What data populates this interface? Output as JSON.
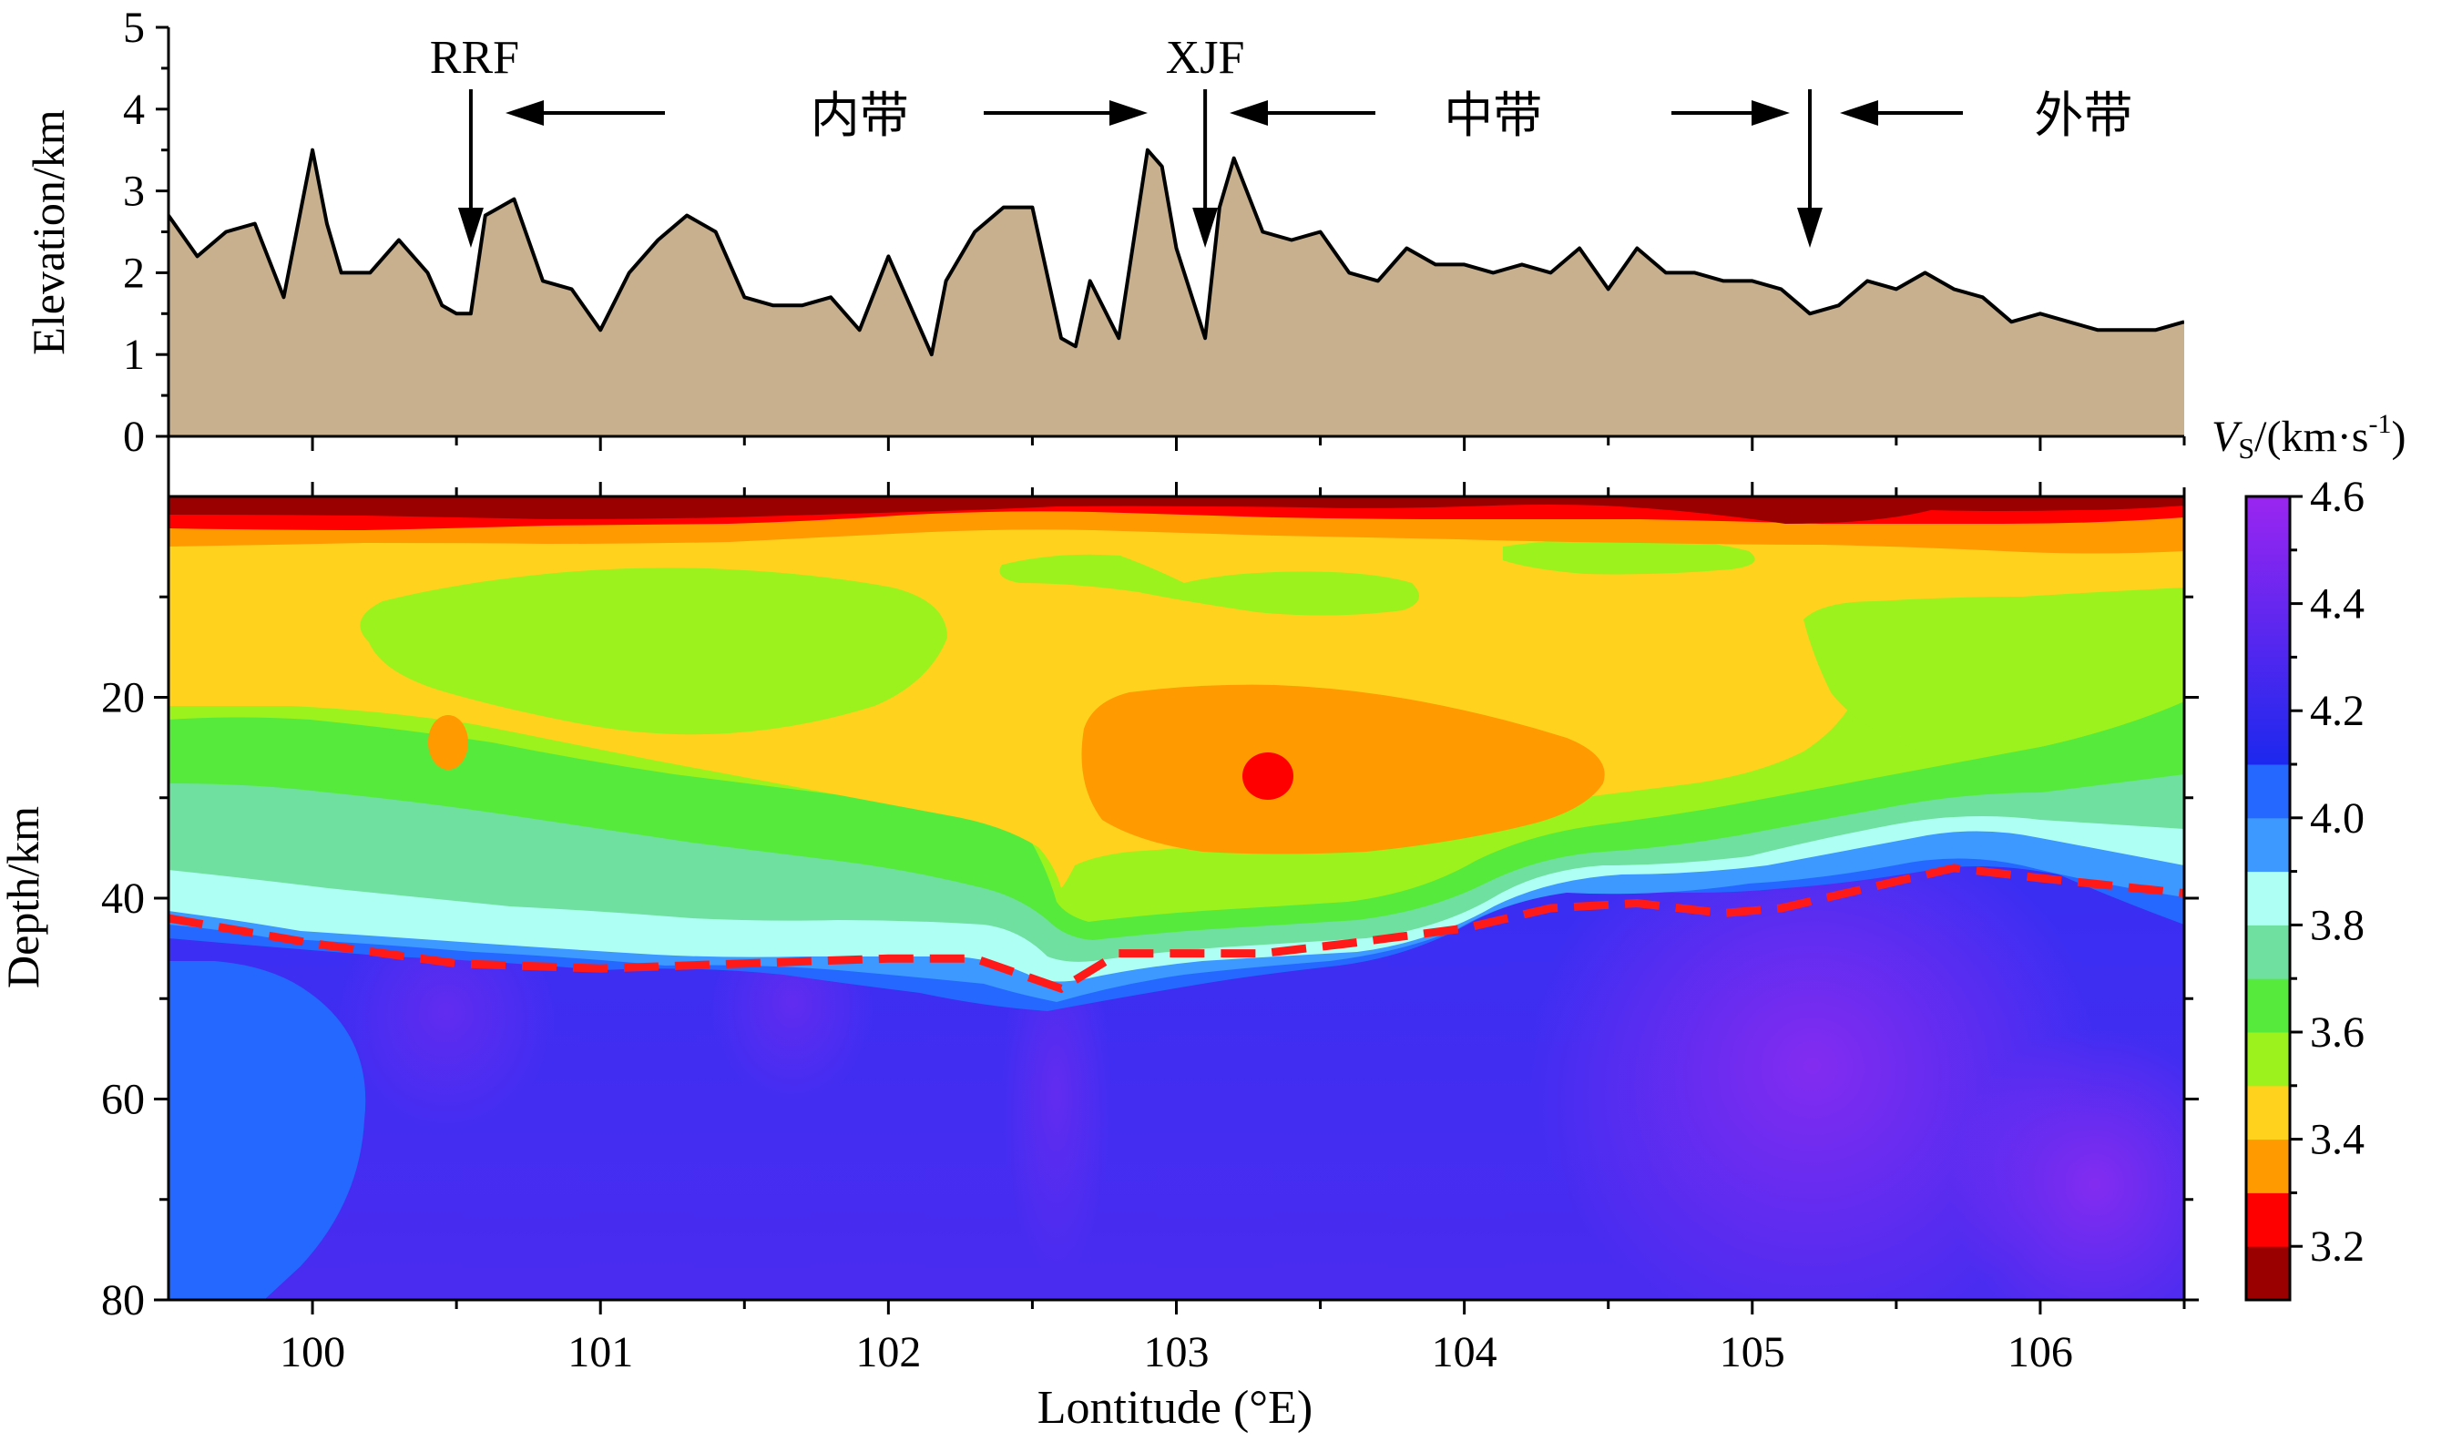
{
  "chart_data": [
    {
      "type": "area",
      "panel": "elevation-profile",
      "ylabel": "Elevation/km",
      "ylim": [
        0,
        5
      ],
      "yticks": [
        "0",
        "1",
        "2",
        "3",
        "4",
        "5"
      ],
      "xlim": [
        99.5,
        106.5
      ],
      "fill_color": "#c8b08e",
      "x": [
        99.5,
        99.6,
        99.7,
        99.8,
        99.9,
        100.0,
        100.05,
        100.1,
        100.2,
        100.3,
        100.4,
        100.45,
        100.5,
        100.55,
        100.6,
        100.65,
        100.7,
        100.8,
        100.9,
        101.0,
        101.1,
        101.2,
        101.3,
        101.4,
        101.5,
        101.6,
        101.7,
        101.8,
        101.9,
        102.0,
        102.1,
        102.15,
        102.2,
        102.3,
        102.4,
        102.5,
        102.6,
        102.65,
        102.7,
        102.8,
        102.9,
        102.95,
        103.0,
        103.1,
        103.15,
        103.2,
        103.3,
        103.4,
        103.5,
        103.6,
        103.7,
        103.8,
        103.9,
        104.0,
        104.1,
        104.2,
        104.3,
        104.4,
        104.5,
        104.6,
        104.7,
        104.8,
        104.9,
        105.0,
        105.1,
        105.2,
        105.3,
        105.4,
        105.5,
        105.6,
        105.7,
        105.8,
        105.9,
        106.0,
        106.1,
        106.2,
        106.3,
        106.4,
        106.5
      ],
      "y": [
        2.7,
        2.2,
        2.5,
        2.6,
        1.7,
        3.5,
        2.6,
        2.0,
        2.0,
        2.4,
        2.0,
        1.6,
        1.5,
        1.5,
        2.7,
        2.8,
        2.9,
        1.9,
        1.8,
        1.3,
        2.0,
        2.4,
        2.7,
        2.5,
        1.7,
        1.6,
        1.6,
        1.7,
        1.3,
        2.2,
        1.4,
        1.0,
        1.9,
        2.5,
        2.8,
        2.8,
        1.2,
        1.1,
        1.9,
        1.2,
        3.5,
        3.3,
        2.3,
        1.2,
        2.8,
        3.4,
        2.5,
        2.4,
        2.5,
        2.0,
        1.9,
        2.3,
        2.1,
        2.1,
        2.0,
        2.1,
        2.0,
        2.3,
        1.8,
        2.3,
        2.0,
        2.0,
        1.9,
        1.9,
        1.8,
        1.5,
        1.6,
        1.9,
        1.8,
        2.0,
        1.8,
        1.7,
        1.4,
        1.5,
        1.4,
        1.3,
        1.3,
        1.3,
        1.4
      ],
      "annotations": [
        {
          "label": "RRF",
          "lon": 100.55,
          "kind": "fault"
        },
        {
          "label": "XJF",
          "lon": 103.1,
          "kind": "fault"
        },
        {
          "label": "",
          "lon": 105.2,
          "kind": "boundary"
        },
        {
          "label": "内带",
          "lon": 101.9,
          "kind": "zone"
        },
        {
          "label": "中带",
          "lon": 104.1,
          "kind": "zone"
        },
        {
          "label": "外带",
          "lon": 106.15,
          "kind": "zone"
        }
      ]
    },
    {
      "type": "heatmap",
      "panel": "shear-velocity-section",
      "title": "",
      "xlabel": "Lontitude (°E)",
      "ylabel": "Depth/km",
      "xlim": [
        99.5,
        106.5
      ],
      "ylim": [
        0,
        80
      ],
      "xticks": [
        "100",
        "101",
        "102",
        "103",
        "104",
        "105",
        "106"
      ],
      "yticks": [
        "20",
        "40",
        "60",
        "80"
      ],
      "colorbar_label_italic": "V",
      "colorbar_label_sub": "S",
      "colorbar_label_rest": "/(km·s",
      "colorbar_label_sup": "-1",
      "colorbar_label_close": ")",
      "colorbar_range": [
        3.1,
        4.6
      ],
      "colorbar_ticks": [
        "3.2",
        "3.4",
        "3.6",
        "3.8",
        "4.0",
        "4.2",
        "4.4",
        "4.6"
      ],
      "colorbar_levels": [
        {
          "from": 3.1,
          "to": 3.2,
          "color": "#9b0000"
        },
        {
          "from": 3.2,
          "to": 3.3,
          "color": "#ff0000"
        },
        {
          "from": 3.3,
          "to": 3.4,
          "color": "#ff9a00"
        },
        {
          "from": 3.4,
          "to": 3.5,
          "color": "#ffd21e"
        },
        {
          "from": 3.5,
          "to": 3.6,
          "color": "#9bf21c"
        },
        {
          "from": 3.6,
          "to": 3.7,
          "color": "#55ea3c"
        },
        {
          "from": 3.7,
          "to": 3.8,
          "color": "#6fe0a0"
        },
        {
          "from": 3.8,
          "to": 3.9,
          "color": "#aefff4"
        },
        {
          "from": 3.9,
          "to": 4.0,
          "color": "#3d98ff"
        },
        {
          "from": 4.0,
          "to": 4.1,
          "color": "#2468ff"
        },
        {
          "from": 4.1,
          "to": 4.6,
          "gradient": [
            "#1c28ee",
            "#9a26f0"
          ]
        }
      ],
      "moho_line": {
        "color": "#ff1a1a",
        "style": "dashed",
        "lon": [
          99.5,
          100.0,
          100.5,
          101.0,
          101.5,
          102.0,
          102.3,
          102.6,
          102.8,
          103.0,
          103.3,
          103.6,
          104.0,
          104.3,
          104.6,
          104.9,
          105.1,
          105.4,
          105.7,
          106.0,
          106.5
        ],
        "depth": [
          42,
          44.5,
          46.5,
          47,
          46.5,
          46,
          46,
          49,
          45.5,
          45.5,
          45.5,
          44.5,
          43,
          41,
          40.5,
          41.5,
          41,
          39,
          37,
          38,
          39.5
        ]
      }
    }
  ]
}
